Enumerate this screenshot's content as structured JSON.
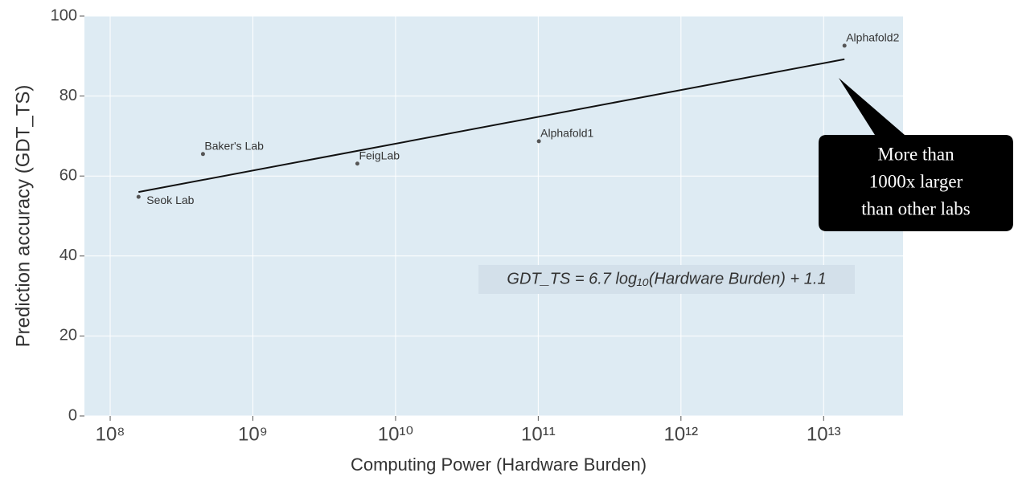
{
  "chart_data": {
    "type": "scatter",
    "xlabel": "Computing Power (Hardware Burden)",
    "ylabel": "Prediction accuracy (GDT_TS)",
    "log_x": true,
    "grid": true,
    "color": "#555555",
    "labels": [
      "Seok Lab",
      "Baker's Lab",
      "FeigLab",
      "Alphafold1",
      "Alphafold2"
    ],
    "x": [
      158000000,
      447000000,
      5400000000,
      101000000000,
      14000000000000
    ],
    "values": [
      54.8,
      65.5,
      63.1,
      68.7,
      92.6
    ],
    "fit": {
      "x": [
        158000000,
        14000000000000
      ],
      "values": [
        56.0,
        89.2
      ]
    },
    "xlim": [
      66000000,
      36000000000000
    ],
    "ylim": [
      0,
      100
    ],
    "xticks": [
      {
        "value": 100000000,
        "label": "10⁸"
      },
      {
        "value": 1000000000,
        "label": "10⁹"
      },
      {
        "value": 10000000000,
        "label": "10¹⁰"
      },
      {
        "value": 100000000000,
        "label": "10¹¹"
      },
      {
        "value": 1000000000000,
        "label": "10¹²"
      },
      {
        "value": 10000000000000,
        "label": "10¹³"
      }
    ],
    "yticks": [
      0,
      20,
      40,
      60,
      80,
      100
    ],
    "equation": "GDT_TS = 6.7 log₁₀(Hardware Burden) + 1.1",
    "callout": [
      "More than",
      "1000x larger",
      "than other labs"
    ]
  }
}
